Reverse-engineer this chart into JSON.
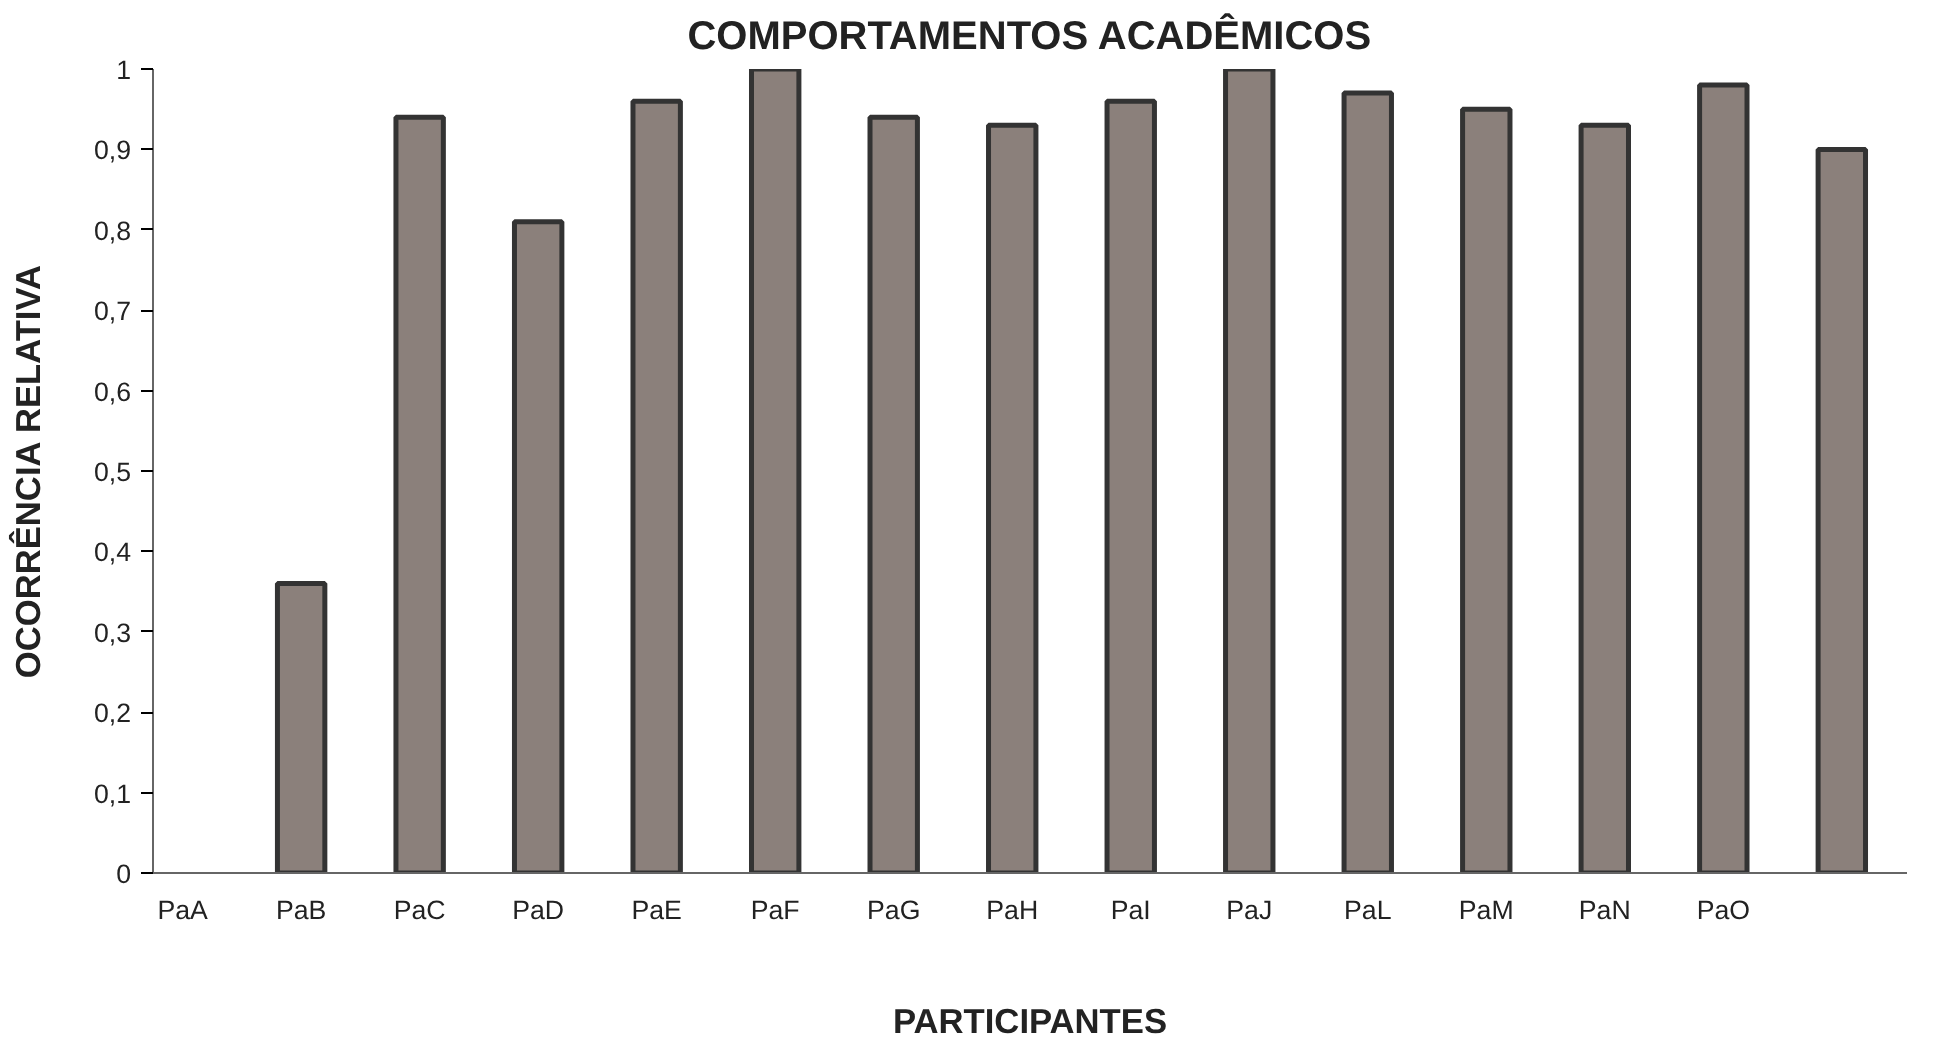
{
  "chart_data": {
    "type": "bar",
    "title": "COMPORTAMENTOS ACADÊMICOS",
    "xlabel": "PARTICIPANTES",
    "ylabel": "OCORRÊNCIA RELATIVA",
    "categories": [
      "PaA",
      "PaB",
      "PaC",
      "PaD",
      "PaE",
      "PaF",
      "PaG",
      "PaH",
      "PaI",
      "PaJ",
      "PaL",
      "PaM",
      "PaN",
      "PaO",
      null
    ],
    "values": [
      null,
      0.36,
      0.94,
      0.81,
      0.96,
      1.0,
      0.94,
      0.93,
      0.96,
      1.0,
      0.97,
      0.95,
      0.93,
      0.98,
      0.9
    ],
    "color": "#8b807b",
    "ylim": [
      0,
      1
    ],
    "yticks": [
      0,
      {
        "value": 0.1,
        "label": "0,1"
      },
      {
        "value": 0.2,
        "label": "0,2"
      },
      {
        "value": 0.3,
        "label": "0,3"
      },
      {
        "value": 0.4,
        "label": "0,4"
      },
      {
        "value": 0.5,
        "label": "0,5"
      },
      {
        "value": 0.6,
        "label": "0,6"
      },
      {
        "value": 0.7,
        "label": "0,7"
      },
      {
        "value": 0.8,
        "label": "0,8"
      },
      {
        "value": 0.9,
        "label": "0,9"
      },
      1
    ],
    "grid": false
  }
}
